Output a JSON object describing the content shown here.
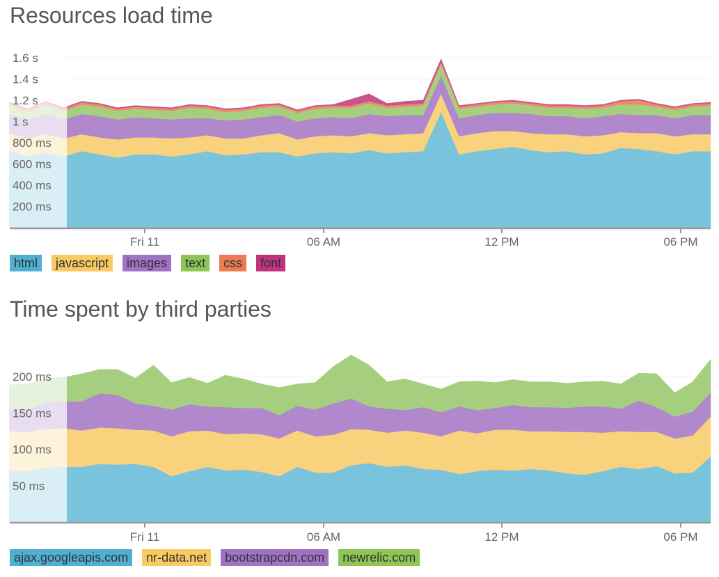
{
  "chart_data": [
    {
      "type": "area",
      "stacked": true,
      "title": "Resources load time",
      "x_ticks": [
        "Fri 11",
        "06 AM",
        "12 PM",
        "06 PM"
      ],
      "y_ticks": [
        {
          "value": 200,
          "label": "200 ms"
        },
        {
          "value": 400,
          "label": "400 ms"
        },
        {
          "value": 600,
          "label": "600 ms"
        },
        {
          "value": 800,
          "label": "800 ms"
        },
        {
          "value": 1000,
          "label": "1 s"
        },
        {
          "value": 1200,
          "label": "1.2 s"
        },
        {
          "value": 1400,
          "label": "1.4 s"
        },
        {
          "value": 1600,
          "label": "1.6 s"
        }
      ],
      "ylim": [
        0,
        1600
      ],
      "legend_placement": "bottom-left",
      "series": [
        {
          "name": "html",
          "color": "#7ac3dd",
          "legend_color": "#4fb0d3",
          "values": [
            730,
            670,
            710,
            670,
            720,
            690,
            660,
            690,
            690,
            670,
            690,
            720,
            680,
            690,
            710,
            710,
            670,
            700,
            710,
            700,
            730,
            700,
            710,
            720,
            1090,
            690,
            720,
            740,
            760,
            730,
            710,
            720,
            690,
            700,
            750,
            740,
            720,
            690,
            720,
            720
          ]
        },
        {
          "name": "javascript",
          "color": "#f8d27c",
          "legend_color": "#f8ca63",
          "values": [
            160,
            170,
            170,
            170,
            160,
            160,
            170,
            160,
            160,
            170,
            160,
            150,
            160,
            150,
            160,
            180,
            160,
            160,
            160,
            160,
            160,
            170,
            170,
            170,
            170,
            170,
            170,
            170,
            150,
            160,
            170,
            160,
            170,
            170,
            150,
            150,
            170,
            170,
            160,
            160
          ]
        },
        {
          "name": "images",
          "color": "#b088cb",
          "legend_color": "#a072c4",
          "values": [
            180,
            180,
            190,
            180,
            190,
            200,
            190,
            190,
            180,
            180,
            180,
            160,
            170,
            180,
            170,
            170,
            170,
            170,
            170,
            170,
            180,
            180,
            180,
            170,
            170,
            170,
            170,
            170,
            170,
            180,
            170,
            170,
            170,
            180,
            170,
            170,
            170,
            170,
            180,
            180
          ]
        },
        {
          "name": "text",
          "color": "#a5cf7e",
          "legend_color": "#8dc556",
          "values": [
            80,
            70,
            90,
            80,
            90,
            90,
            80,
            80,
            80,
            80,
            100,
            90,
            80,
            80,
            90,
            80,
            80,
            90,
            90,
            100,
            100,
            80,
            80,
            90,
            110,
            90,
            80,
            80,
            90,
            80,
            80,
            80,
            90,
            80,
            90,
            100,
            80,
            80,
            80,
            90
          ]
        },
        {
          "name": "css",
          "color": "#ef8c67",
          "legend_color": "#ec7a52",
          "values": [
            20,
            20,
            20,
            20,
            20,
            20,
            20,
            20,
            20,
            20,
            20,
            20,
            20,
            20,
            20,
            20,
            20,
            20,
            20,
            20,
            20,
            20,
            20,
            20,
            20,
            20,
            20,
            20,
            20,
            20,
            20,
            20,
            20,
            20,
            30,
            40,
            20,
            20,
            20,
            20
          ]
        },
        {
          "name": "font",
          "color": "#c8558f",
          "legend_color": "#c0337f",
          "values": [
            10,
            10,
            10,
            10,
            10,
            10,
            10,
            10,
            10,
            10,
            10,
            10,
            10,
            10,
            10,
            10,
            10,
            10,
            10,
            60,
            70,
            20,
            30,
            30,
            30,
            10,
            10,
            10,
            10,
            10,
            10,
            10,
            10,
            10,
            10,
            10,
            10,
            10,
            10,
            10
          ]
        }
      ]
    },
    {
      "type": "area",
      "stacked": true,
      "title": "Time spent by third parties",
      "x_ticks": [
        "Fri 11",
        "06 AM",
        "12 PM",
        "06 PM"
      ],
      "y_ticks": [
        {
          "value": 50,
          "label": "50 ms"
        },
        {
          "value": 100,
          "label": "100 ms"
        },
        {
          "value": 150,
          "label": "150 ms"
        },
        {
          "value": 200,
          "label": "200 ms"
        }
      ],
      "ylim": [
        0,
        250
      ],
      "legend_placement": "bottom-left",
      "series": [
        {
          "name": "ajax.googleapis.com",
          "color": "#7ac3dd",
          "legend_color": "#4fb0d3",
          "values": [
            70,
            70,
            75,
            76,
            76,
            80,
            79,
            80,
            76,
            63,
            70,
            76,
            71,
            72,
            69,
            63,
            76,
            68,
            68,
            78,
            81,
            76,
            78,
            73,
            72,
            66,
            70,
            72,
            71,
            73,
            71,
            67,
            65,
            70,
            76,
            73,
            77,
            67,
            68,
            90
          ]
        },
        {
          "name": "nr-data.net",
          "color": "#f8d27c",
          "legend_color": "#f8ca63",
          "values": [
            55,
            54,
            53,
            53,
            50,
            50,
            50,
            47,
            50,
            55,
            55,
            50,
            50,
            50,
            52,
            52,
            50,
            50,
            52,
            50,
            46,
            47,
            48,
            50,
            46,
            60,
            52,
            55,
            56,
            52,
            54,
            57,
            59,
            53,
            49,
            51,
            47,
            48,
            51,
            55
          ]
        },
        {
          "name": "bootstrapcdn.com",
          "color": "#b088cb",
          "legend_color": "#a072c4",
          "values": [
            30,
            31,
            37,
            37,
            40,
            47,
            46,
            36,
            34,
            37,
            37,
            33,
            37,
            35,
            36,
            32,
            34,
            37,
            43,
            42,
            32,
            33,
            28,
            35,
            33,
            33,
            32,
            30,
            34,
            33,
            33,
            33,
            35,
            36,
            31,
            43,
            34,
            30,
            33,
            33
          ]
        },
        {
          "name": "newrelic.com",
          "color": "#a5cf7e",
          "legend_color": "#8dc556",
          "values": [
            34,
            35,
            33,
            33,
            38,
            33,
            35,
            35,
            56,
            37,
            37,
            32,
            44,
            40,
            33,
            38,
            30,
            37,
            51,
            60,
            57,
            37,
            43,
            32,
            32,
            34,
            40,
            35,
            35,
            35,
            35,
            34,
            34,
            35,
            34,
            38,
            46,
            33,
            41,
            46
          ]
        }
      ]
    }
  ]
}
